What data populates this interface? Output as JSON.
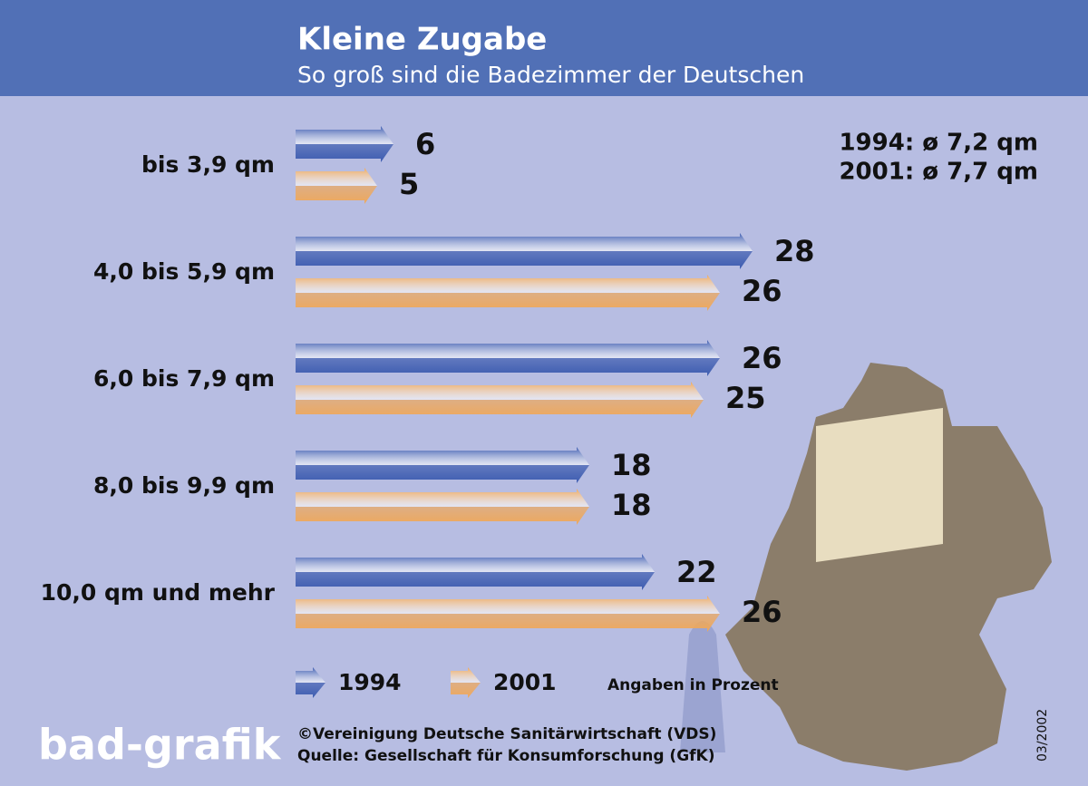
{
  "chart_data": {
    "type": "bar",
    "title": "Kleine Zugabe",
    "subtitle": "So groß sind die Badezimmer der Deutschen",
    "categories": [
      "bis 3,9 qm",
      "4,0 bis 5,9 qm",
      "6,0 bis 7,9 qm",
      "8,0 bis 9,9 qm",
      "10,0 qm und mehr"
    ],
    "series": [
      {
        "name": "1994",
        "color": "#3d5cb0",
        "values": [
          6,
          28,
          26,
          18,
          22
        ]
      },
      {
        "name": "2001",
        "color": "#eea85c",
        "values": [
          5,
          26,
          25,
          18,
          26
        ]
      }
    ],
    "annotations": [
      "1994:  ø 7,2 qm",
      "2001:  ø 7,7 qm"
    ],
    "unit_note": "Angaben in Prozent",
    "source": [
      "©Vereinigung Deutsche Sanitärwirtschaft (VDS)",
      "Quelle: Gesellschaft für Konsumforschung (GfK)"
    ],
    "logo": "bad-grafik",
    "date": "03/2002"
  }
}
